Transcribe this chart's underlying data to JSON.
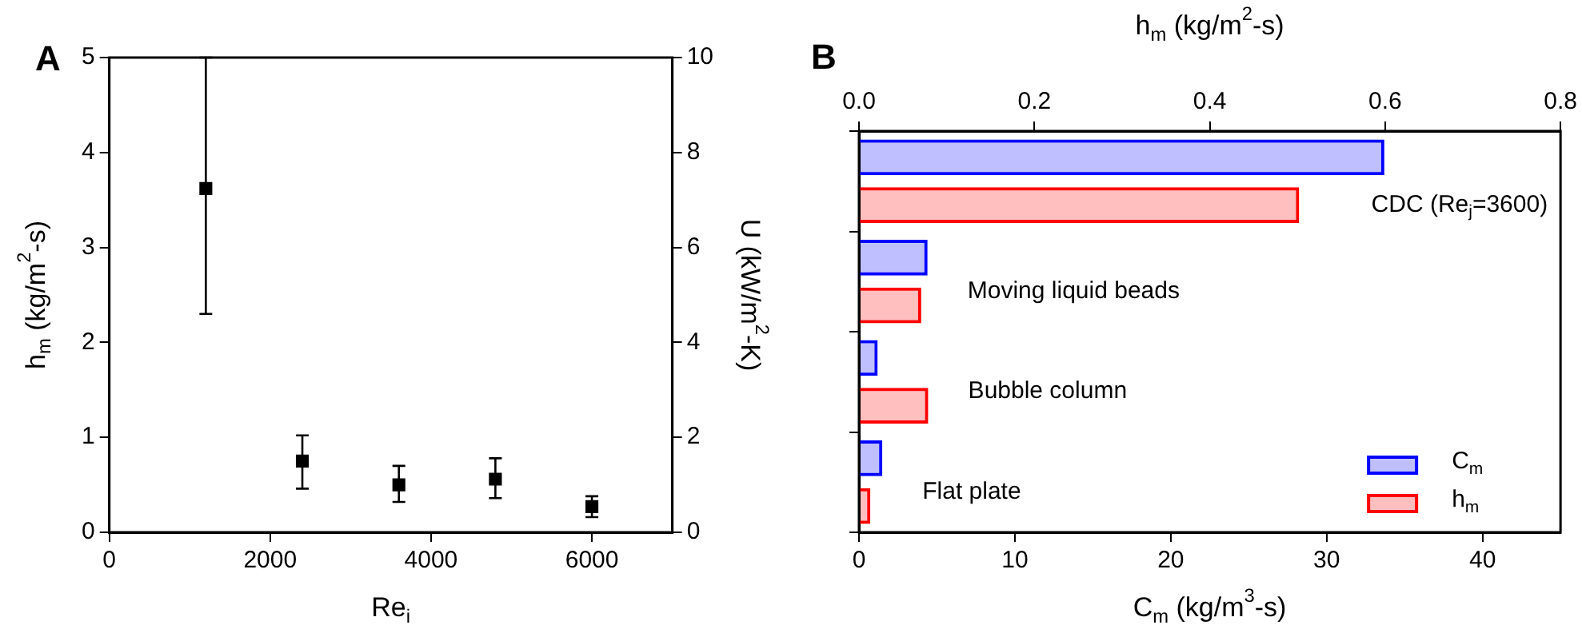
{
  "chart_data": [
    {
      "type": "scatter",
      "title": "A",
      "xlabel": "Re$_{i}$",
      "ylabel": "h$_{m}$ (kg/m$^{2}$-s)",
      "y2label": "U (kW/m$^{2}$-K)",
      "x": [
        1200,
        2400,
        3600,
        4800,
        6000
      ],
      "values": [
        3.62,
        0.75,
        0.5,
        0.56,
        0.27
      ],
      "errors": [
        [
          2.3,
          5.0
        ],
        [
          0.46,
          1.02
        ],
        [
          0.32,
          0.7
        ],
        [
          0.36,
          0.78
        ],
        [
          0.16,
          0.38
        ]
      ],
      "color": "#000000",
      "marker": "square",
      "xlim": [
        0,
        7000
      ],
      "xticks": [
        0,
        2000,
        4000,
        6000
      ],
      "ylim": [
        0,
        5
      ],
      "yticks": [
        0,
        1,
        2,
        3,
        4,
        5
      ],
      "y2lim": [
        0,
        10
      ],
      "y2ticks": [
        0,
        2,
        4,
        6,
        8,
        10
      ]
    },
    {
      "type": "bar",
      "orientation": "horizontal",
      "title": "B",
      "xlabel": "C$_{m}$ (kg/m$^{3}$-s)",
      "x2label": "h$_{m}$ (kg/m$^{2}$-s)",
      "categories": [
        "CDC (Re$_{j}$=3600)",
        "Moving liquid beads",
        "Bubble column",
        "Flat plate"
      ],
      "series": [
        {
          "name": "C$_{m}$",
          "color": "#0000ff",
          "values": [
            33.7,
            4.4,
            1.2,
            1.5
          ]
        },
        {
          "name": "h$_{m}$",
          "color": "#ff0000",
          "axis": "x2",
          "values": [
            0.502,
            0.071,
            0.079,
            0.013
          ]
        }
      ],
      "xlim": [
        0,
        45
      ],
      "xticks": [
        0,
        10,
        20,
        30,
        40
      ],
      "x2lim": [
        0,
        0.8
      ],
      "x2ticks": [
        {
          "value": 0,
          "label": "0.0"
        },
        0.2,
        0.4,
        0.6,
        0.8
      ],
      "legend": "bottom right",
      "tick_labels": "x"
    }
  ]
}
